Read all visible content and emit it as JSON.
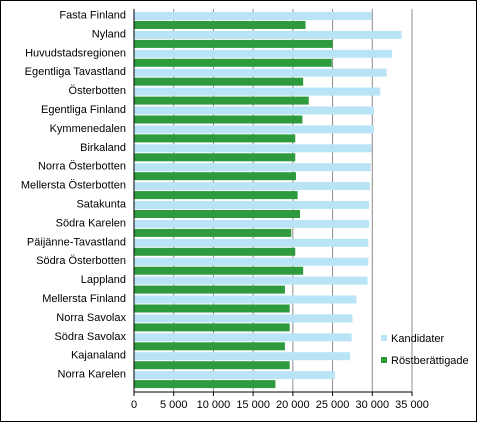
{
  "chart_data": {
    "type": "bar",
    "orientation": "horizontal",
    "categories": [
      "Fasta Finland",
      "Nyland",
      "Huvudstadsregionen",
      "Egentliga Tavastland",
      "Österbotten",
      "Egentliga Finland",
      "Kymmenedalen",
      "Birkaland",
      "Norra Österbotten",
      "Mellersta Österbotten",
      "Satakunta",
      "Södra Karelen",
      "Päijänne-Tavastland",
      "Södra Österbotten",
      "Lappland",
      "Mellersta Finland",
      "Norra Savolax",
      "Södra Savolax",
      "Kajanaland",
      "Norra Karelen"
    ],
    "series": [
      {
        "name": "Kandidater",
        "color": "#b9e4f5",
        "values": [
          29900,
          33700,
          32500,
          31800,
          31000,
          30200,
          30200,
          29900,
          29800,
          29700,
          29600,
          29600,
          29500,
          29500,
          29400,
          28000,
          27500,
          27400,
          27200,
          25300
        ]
      },
      {
        "name": "Röstberättigade",
        "color": "#2e9a3e",
        "values": [
          21600,
          25000,
          24900,
          21300,
          22000,
          21200,
          20300,
          20300,
          20400,
          20600,
          20900,
          19800,
          20300,
          21300,
          19000,
          19600,
          19600,
          19000,
          19600,
          17800
        ]
      }
    ],
    "xlim": [
      0,
      35000
    ],
    "xticks": [
      "0",
      "5 000",
      "10 000",
      "15 000",
      "20 000",
      "25 000",
      "30 000",
      "35 000"
    ],
    "grid": "vertical",
    "legend_position": "lower-right",
    "title": "",
    "xlabel": "",
    "ylabel": ""
  }
}
